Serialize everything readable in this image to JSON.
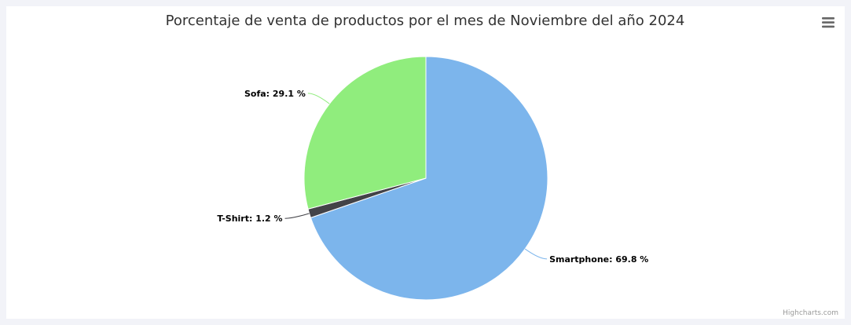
{
  "chart_data": {
    "type": "pie",
    "title": "Porcentaje de venta de productos por el mes de Noviembre del año 2024",
    "series": [
      {
        "data": [
          {
            "name": "Smartphone",
            "value": 69.8,
            "color": "#7cb5ec",
            "label": "Smartphone: 69.8 %"
          },
          {
            "name": "T-Shirt",
            "value": 1.2,
            "color": "#434348",
            "label": "T-Shirt: 1.2 %"
          },
          {
            "name": "Sofa",
            "value": 29.1,
            "color": "#90ed7d",
            "label": "Sofa: 29.1 %"
          }
        ]
      }
    ]
  },
  "credits": "Highcharts.com",
  "menu_icon": "hamburger-menu-icon"
}
